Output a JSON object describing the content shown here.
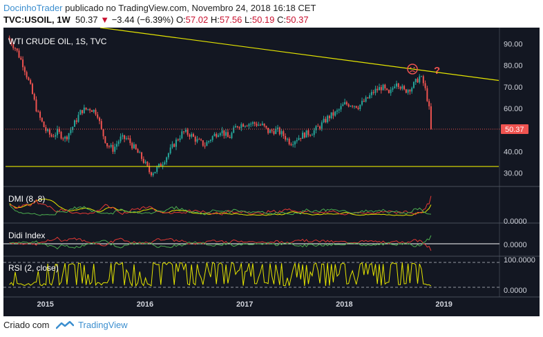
{
  "header": {
    "author": "DocinhoTrader",
    "published_text": "publicado no TradingView.com, Novembro 24, 2018 16:18 CET",
    "symbol": "TVC:USOIL, 1W",
    "last": "50.37",
    "change": "−3.44 (−6.39%)",
    "o_label": "O:",
    "o_value": "57.02",
    "h_label": "H:",
    "h_value": "57.56",
    "l_label": "L:",
    "l_value": "50.19",
    "c_label": "C:",
    "c_value": "50.37"
  },
  "footer": {
    "created_with": "Criado com",
    "brand": "TradingView"
  },
  "colors": {
    "background": "#131722",
    "up": "#26a69a",
    "down": "#ef5350",
    "trendline": "#e6e600",
    "grid_text": "#d1d4dc",
    "price_tag": "#ef5350",
    "dmi_plus": "#4caf50",
    "dmi_minus": "#e53935",
    "adx": "#e6e600",
    "rsi": "#e6e600"
  },
  "chart_data": {
    "type": "candlestick",
    "title": "WTI CRUDE OIL, 1S, TVC",
    "x_ticks": [
      "2015",
      "2016",
      "2017",
      "2018",
      "2019"
    ],
    "y_ticks": [
      "90.00",
      "80.00",
      "70.00",
      "60.00",
      "50.00",
      "40.00",
      "30.00"
    ],
    "ylim": [
      25,
      95
    ],
    "xlim": [
      2014.6,
      2019.55
    ],
    "last_price_tag": "50.37",
    "annotation": "?",
    "close_series": [
      {
        "x": 2014.62,
        "y": 93
      },
      {
        "x": 2014.7,
        "y": 88
      },
      {
        "x": 2014.78,
        "y": 80
      },
      {
        "x": 2014.85,
        "y": 70
      },
      {
        "x": 2014.92,
        "y": 58
      },
      {
        "x": 2015.0,
        "y": 50
      },
      {
        "x": 2015.06,
        "y": 47
      },
      {
        "x": 2015.12,
        "y": 49
      },
      {
        "x": 2015.2,
        "y": 46
      },
      {
        "x": 2015.28,
        "y": 52
      },
      {
        "x": 2015.36,
        "y": 59
      },
      {
        "x": 2015.45,
        "y": 60
      },
      {
        "x": 2015.52,
        "y": 58
      },
      {
        "x": 2015.56,
        "y": 50
      },
      {
        "x": 2015.62,
        "y": 43
      },
      {
        "x": 2015.68,
        "y": 41
      },
      {
        "x": 2015.75,
        "y": 46
      },
      {
        "x": 2015.82,
        "y": 46
      },
      {
        "x": 2015.9,
        "y": 41
      },
      {
        "x": 2015.98,
        "y": 36
      },
      {
        "x": 2016.05,
        "y": 30
      },
      {
        "x": 2016.1,
        "y": 31
      },
      {
        "x": 2016.16,
        "y": 34
      },
      {
        "x": 2016.22,
        "y": 38
      },
      {
        "x": 2016.3,
        "y": 44
      },
      {
        "x": 2016.38,
        "y": 49
      },
      {
        "x": 2016.45,
        "y": 48
      },
      {
        "x": 2016.52,
        "y": 45
      },
      {
        "x": 2016.6,
        "y": 43
      },
      {
        "x": 2016.68,
        "y": 47
      },
      {
        "x": 2016.76,
        "y": 50
      },
      {
        "x": 2016.84,
        "y": 46
      },
      {
        "x": 2016.92,
        "y": 52
      },
      {
        "x": 2017.0,
        "y": 53
      },
      {
        "x": 2017.1,
        "y": 53
      },
      {
        "x": 2017.18,
        "y": 52
      },
      {
        "x": 2017.24,
        "y": 49
      },
      {
        "x": 2017.32,
        "y": 50
      },
      {
        "x": 2017.4,
        "y": 47
      },
      {
        "x": 2017.46,
        "y": 44
      },
      {
        "x": 2017.52,
        "y": 46
      },
      {
        "x": 2017.6,
        "y": 48
      },
      {
        "x": 2017.68,
        "y": 49
      },
      {
        "x": 2017.76,
        "y": 52
      },
      {
        "x": 2017.84,
        "y": 56
      },
      {
        "x": 2017.92,
        "y": 58
      },
      {
        "x": 2018.0,
        "y": 62
      },
      {
        "x": 2018.08,
        "y": 62
      },
      {
        "x": 2018.14,
        "y": 61
      },
      {
        "x": 2018.22,
        "y": 64
      },
      {
        "x": 2018.3,
        "y": 68
      },
      {
        "x": 2018.38,
        "y": 70
      },
      {
        "x": 2018.45,
        "y": 66
      },
      {
        "x": 2018.52,
        "y": 73
      },
      {
        "x": 2018.6,
        "y": 68
      },
      {
        "x": 2018.68,
        "y": 70
      },
      {
        "x": 2018.76,
        "y": 75
      },
      {
        "x": 2018.8,
        "y": 71
      },
      {
        "x": 2018.84,
        "y": 63
      },
      {
        "x": 2018.88,
        "y": 50.37
      }
    ],
    "trendline": [
      {
        "x": 2015.55,
        "y": 100
      },
      {
        "x": 2019.55,
        "y": 73
      }
    ],
    "support_level": 33,
    "panels": [
      {
        "name": "DMI (8, 8)",
        "tick": "0.0000"
      },
      {
        "name": "Didi Index",
        "tick": "0.0000"
      },
      {
        "name": "RSI (2, close)",
        "ticks": [
          "100.0000",
          "0.0000"
        ]
      }
    ]
  }
}
